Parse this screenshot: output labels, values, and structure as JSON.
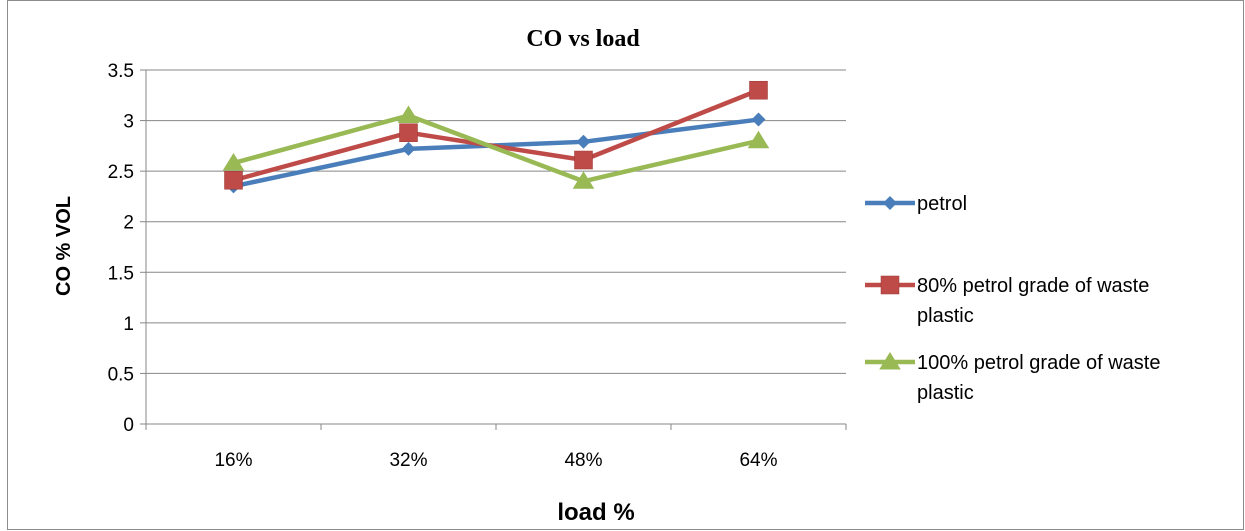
{
  "chart_data": {
    "type": "line",
    "title": "CO vs load",
    "xlabel": "load %",
    "ylabel": "CO  % VOL",
    "categories": [
      "16%",
      "32%",
      "48%",
      "64%"
    ],
    "ylim": [
      0,
      3.5
    ],
    "yticks": [
      "0",
      "0.5",
      "1",
      "1.5",
      "2",
      "2.5",
      "3",
      "3.5"
    ],
    "grid": true,
    "legend_position": "right",
    "series": [
      {
        "name": "petrol",
        "values": [
          2.35,
          2.72,
          2.79,
          3.01
        ],
        "color": "#4a7ebb",
        "marker": "diamond"
      },
      {
        "name": "80%  petrol grade of waste plastic",
        "values": [
          2.41,
          2.88,
          2.61,
          3.3
        ],
        "color": "#be4b48",
        "marker": "square"
      },
      {
        "name": "100% petrol grade of waste plastic",
        "values": [
          2.58,
          3.05,
          2.4,
          2.8
        ],
        "color": "#98b954",
        "marker": "triangle"
      }
    ]
  }
}
